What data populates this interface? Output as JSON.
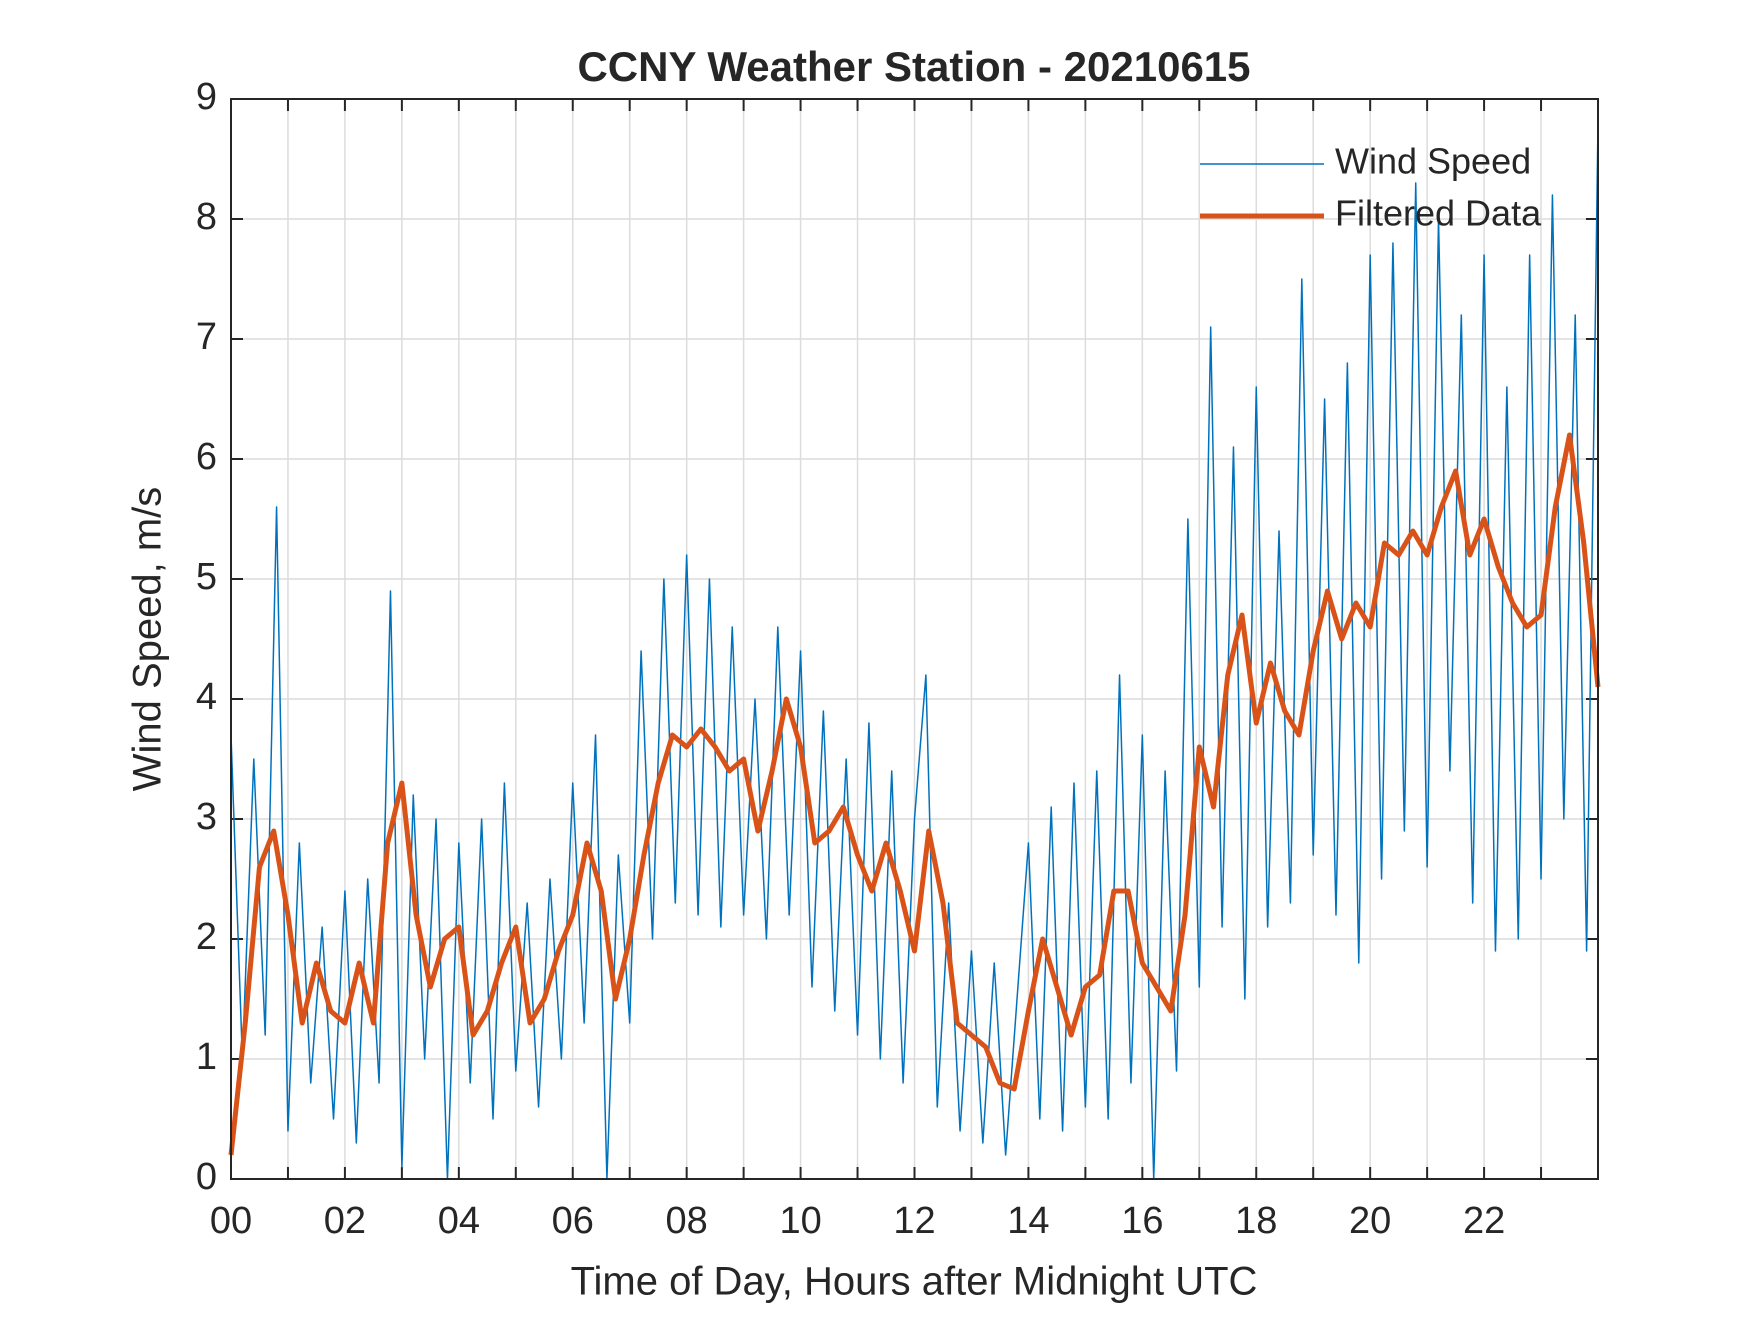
{
  "chart_data": {
    "type": "line",
    "title": "CCNY Weather Station - 20210615",
    "x_label": "Time of Day, Hours after Midnight UTC",
    "y_label": "Wind Speed, m/s",
    "xlim": [
      0,
      24
    ],
    "ylim": [
      0,
      9
    ],
    "xticks": [
      {
        "value": 0,
        "label": "00"
      },
      {
        "value": 2,
        "label": "02"
      },
      {
        "value": 4,
        "label": "04"
      },
      {
        "value": 6,
        "label": "06"
      },
      {
        "value": 8,
        "label": "08"
      },
      {
        "value": 10,
        "label": "10"
      },
      {
        "value": 12,
        "label": "12"
      },
      {
        "value": 14,
        "label": "14"
      },
      {
        "value": 16,
        "label": "16"
      },
      {
        "value": 18,
        "label": "18"
      },
      {
        "value": 20,
        "label": "20"
      },
      {
        "value": 22,
        "label": "22"
      }
    ],
    "xminorticks": [
      1,
      3,
      5,
      7,
      9,
      11,
      13,
      15,
      17,
      19,
      21,
      23
    ],
    "yticks": [
      0,
      1,
      2,
      3,
      4,
      5,
      6,
      7,
      8,
      9
    ],
    "grid": true,
    "legend": "top-right",
    "series": [
      {
        "name": "Wind Speed",
        "color": "#0072bd",
        "width": 1.5,
        "x": [
          0,
          0.2,
          0.4,
          0.6,
          0.8,
          1,
          1.2,
          1.4,
          1.6,
          1.8,
          2,
          2.2,
          2.4,
          2.6,
          2.8,
          3,
          3.2,
          3.4,
          3.6,
          3.8,
          4,
          4.2,
          4.4,
          4.6,
          4.8,
          5,
          5.2,
          5.4,
          5.6,
          5.8,
          6,
          6.2,
          6.4,
          6.6,
          6.8,
          7,
          7.2,
          7.4,
          7.6,
          7.8,
          8,
          8.2,
          8.4,
          8.6,
          8.8,
          9,
          9.2,
          9.4,
          9.6,
          9.8,
          10,
          10.2,
          10.4,
          10.6,
          10.8,
          11,
          11.2,
          11.4,
          11.6,
          11.8,
          12,
          12.2,
          12.4,
          12.6,
          12.8,
          13,
          13.2,
          13.4,
          13.6,
          13.8,
          14,
          14.2,
          14.4,
          14.6,
          14.8,
          15,
          15.2,
          15.4,
          15.6,
          15.8,
          16,
          16.2,
          16.4,
          16.6,
          16.8,
          17,
          17.2,
          17.4,
          17.6,
          17.8,
          18,
          18.2,
          18.4,
          18.6,
          18.8,
          19,
          19.2,
          19.4,
          19.6,
          19.8,
          20,
          20.2,
          20.4,
          20.6,
          20.8,
          21,
          21.2,
          21.4,
          21.6,
          21.8,
          22,
          22.2,
          22.4,
          22.6,
          22.8,
          23,
          23.2,
          23.4,
          23.6,
          23.8,
          24
        ],
        "values": [
          3.7,
          1.0,
          3.5,
          1.2,
          5.6,
          0.4,
          2.8,
          0.8,
          2.1,
          0.5,
          2.4,
          0.3,
          2.5,
          0.8,
          4.9,
          0.1,
          3.2,
          1.0,
          3.0,
          0.0,
          2.8,
          0.8,
          3.0,
          0.5,
          3.3,
          0.9,
          2.3,
          0.6,
          2.5,
          1.0,
          3.3,
          1.3,
          3.7,
          0.0,
          2.7,
          1.3,
          4.4,
          2.0,
          5.0,
          2.3,
          5.2,
          2.2,
          5.0,
          2.1,
          4.6,
          2.2,
          4.0,
          2.0,
          4.6,
          2.2,
          4.4,
          1.6,
          3.9,
          1.4,
          3.5,
          1.2,
          3.8,
          1.0,
          3.4,
          0.8,
          3.0,
          4.2,
          0.6,
          2.3,
          0.4,
          1.9,
          0.3,
          1.8,
          0.2,
          1.5,
          2.8,
          0.5,
          3.1,
          0.4,
          3.3,
          0.6,
          3.4,
          0.5,
          4.2,
          0.8,
          3.7,
          0.0,
          3.4,
          0.9,
          5.5,
          1.6,
          7.1,
          2.1,
          6.1,
          1.5,
          6.6,
          2.1,
          5.4,
          2.3,
          7.5,
          2.7,
          6.5,
          2.2,
          6.8,
          1.8,
          7.7,
          2.5,
          7.8,
          2.9,
          8.3,
          2.6,
          8.0,
          3.4,
          7.2,
          2.3,
          7.7,
          1.9,
          6.6,
          2.0,
          7.7,
          2.5,
          8.2,
          3.0,
          7.2,
          1.9,
          8.8
        ]
      },
      {
        "name": "Filtered Data",
        "color": "#d95319",
        "width": 5,
        "x": [
          0,
          0.25,
          0.5,
          0.75,
          1,
          1.25,
          1.5,
          1.75,
          2,
          2.25,
          2.5,
          2.75,
          3,
          3.25,
          3.5,
          3.75,
          4,
          4.25,
          4.5,
          4.75,
          5,
          5.25,
          5.5,
          5.75,
          6,
          6.25,
          6.5,
          6.75,
          7,
          7.25,
          7.5,
          7.75,
          8,
          8.25,
          8.5,
          8.75,
          9,
          9.25,
          9.5,
          9.75,
          10,
          10.25,
          10.5,
          10.75,
          11,
          11.25,
          11.5,
          11.75,
          12,
          12.25,
          12.5,
          12.75,
          13,
          13.25,
          13.5,
          13.75,
          14,
          14.25,
          14.5,
          14.75,
          15,
          15.25,
          15.5,
          15.75,
          16,
          16.25,
          16.5,
          16.75,
          17,
          17.25,
          17.5,
          17.75,
          18,
          18.25,
          18.5,
          18.75,
          19,
          19.25,
          19.5,
          19.75,
          20,
          20.25,
          20.5,
          20.75,
          21,
          21.25,
          21.5,
          21.75,
          22,
          22.25,
          22.5,
          22.75,
          23,
          23.25,
          23.5,
          23.75,
          24
        ],
        "values": [
          0.2,
          1.3,
          2.6,
          2.9,
          2.2,
          1.3,
          1.8,
          1.4,
          1.3,
          1.8,
          1.3,
          2.8,
          3.3,
          2.2,
          1.6,
          2.0,
          2.1,
          1.2,
          1.4,
          1.8,
          2.1,
          1.3,
          1.5,
          1.9,
          2.2,
          2.8,
          2.4,
          1.5,
          2.0,
          2.7,
          3.3,
          3.7,
          3.6,
          3.75,
          3.6,
          3.4,
          3.5,
          2.9,
          3.4,
          4.0,
          3.6,
          2.8,
          2.9,
          3.1,
          2.7,
          2.4,
          2.8,
          2.4,
          1.9,
          2.9,
          2.3,
          1.3,
          1.2,
          1.1,
          0.8,
          0.75,
          1.4,
          2.0,
          1.6,
          1.2,
          1.6,
          1.7,
          2.4,
          2.4,
          1.8,
          1.6,
          1.4,
          2.2,
          3.6,
          3.1,
          4.2,
          4.7,
          3.8,
          4.3,
          3.9,
          3.7,
          4.4,
          4.9,
          4.5,
          4.8,
          4.6,
          5.3,
          5.2,
          5.4,
          5.2,
          5.6,
          5.9,
          5.2,
          5.5,
          5.1,
          4.8,
          4.6,
          4.7,
          5.6,
          6.2,
          5.3,
          4.1
        ]
      }
    ]
  }
}
